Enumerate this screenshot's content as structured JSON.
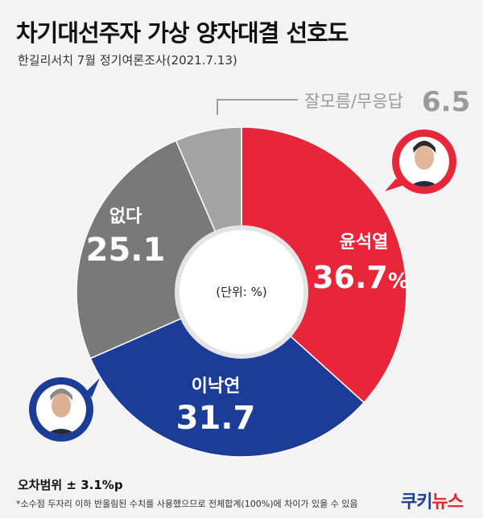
{
  "header": {
    "title": "차기대선주자 가상 양자대결 선호도",
    "subtitle": "한길리서치 7월 정기여론조사(2021.7.13)"
  },
  "chart_data": {
    "type": "pie",
    "donut": true,
    "slices": [
      {
        "label": "윤석열",
        "value": 36.7,
        "display": "36.7",
        "unit": "%",
        "color": "#e8263a"
      },
      {
        "label": "이낙연",
        "value": 31.7,
        "display": "31.7",
        "unit": "",
        "color": "#1b3c97"
      },
      {
        "label": "없다",
        "value": 25.1,
        "display": "25.1",
        "unit": "",
        "color": "#797979"
      },
      {
        "label": "잘모름/무응답",
        "value": 6.5,
        "display": "6.5",
        "unit": "",
        "color": "#a3a3a3"
      }
    ],
    "center_label": "(단위: %)"
  },
  "footer": {
    "margin_of_error": "오차범위 ± 3.1%p",
    "note": "*소수점 두자리 이하 반올림된 수치를 사용했으므로 전체합계(100%)에 차이가 있을 수 있음",
    "logo_main": "쿠키",
    "logo_accent": "뉴스"
  }
}
